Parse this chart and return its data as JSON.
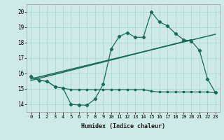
{
  "xlabel": "Humidex (Indice chaleur)",
  "xlim": [
    -0.5,
    23.5
  ],
  "ylim": [
    13.5,
    20.5
  ],
  "yticks": [
    14,
    15,
    16,
    17,
    18,
    19,
    20
  ],
  "xticks": [
    0,
    1,
    2,
    3,
    4,
    5,
    6,
    7,
    8,
    9,
    10,
    11,
    12,
    13,
    14,
    15,
    16,
    17,
    18,
    19,
    20,
    21,
    22,
    23
  ],
  "bg_color": "#ceeae7",
  "grid_color": "#a8d5d1",
  "line_color": "#1a6b5a",
  "curve1_x": [
    0,
    1,
    2,
    3,
    4,
    5,
    6,
    7,
    8,
    9,
    10,
    11,
    12,
    13,
    14,
    15,
    16,
    17,
    18,
    19,
    20,
    21,
    22,
    23
  ],
  "curve1_y": [
    15.8,
    15.55,
    15.5,
    15.15,
    15.05,
    14.0,
    13.95,
    13.95,
    14.35,
    15.3,
    17.6,
    18.4,
    18.65,
    18.35,
    18.35,
    20.0,
    19.35,
    19.1,
    18.6,
    18.2,
    18.1,
    17.5,
    15.65,
    14.75
  ],
  "curve2_x": [
    0,
    1,
    2,
    3,
    4,
    5,
    6,
    7,
    8,
    9,
    10,
    11,
    12,
    13,
    14,
    15,
    16,
    17,
    18,
    19,
    20,
    21,
    22,
    23
  ],
  "curve2_y": [
    15.8,
    15.55,
    15.5,
    15.15,
    15.05,
    14.95,
    14.95,
    14.95,
    14.95,
    14.95,
    14.95,
    14.95,
    14.95,
    14.95,
    14.95,
    14.85,
    14.8,
    14.8,
    14.8,
    14.8,
    14.8,
    14.8,
    14.8,
    14.75
  ],
  "trend1_x": [
    0,
    23
  ],
  "trend1_y": [
    15.65,
    18.55
  ],
  "trend2_x": [
    0,
    20
  ],
  "trend2_y": [
    15.55,
    18.2
  ]
}
